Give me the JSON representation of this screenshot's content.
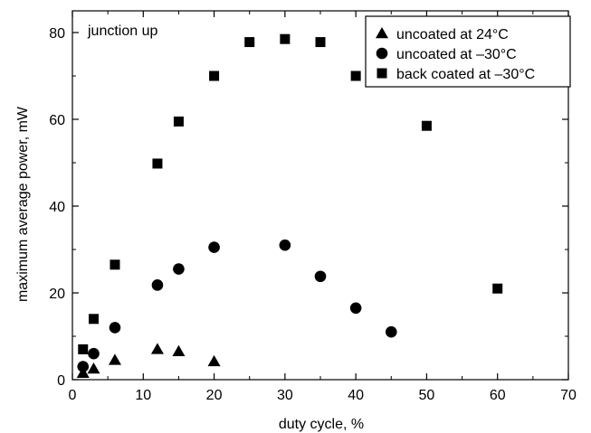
{
  "chart_data": {
    "type": "scatter",
    "title": "",
    "xlabel": "duty cycle, %",
    "ylabel": "maximum average power, mW",
    "annotation": "junction up",
    "xlim": [
      0,
      70
    ],
    "ylim": [
      0,
      85
    ],
    "xticks": [
      0,
      10,
      20,
      30,
      40,
      50,
      60,
      70
    ],
    "yticks": [
      0,
      20,
      40,
      60,
      80
    ],
    "grid": false,
    "legend_position": "top-right",
    "series": [
      {
        "name": "uncoated at 24°C",
        "marker": "triangle",
        "color": "#000000",
        "x": [
          1.5,
          3,
          6,
          12,
          15,
          20
        ],
        "y": [
          1.5,
          2.5,
          4.5,
          7,
          6.5,
          4.2
        ]
      },
      {
        "name": "uncoated at –30°C",
        "marker": "circle",
        "color": "#000000",
        "x": [
          1.5,
          3,
          6,
          12,
          15,
          20,
          30,
          35,
          40,
          45
        ],
        "y": [
          3,
          6,
          12,
          21.8,
          25.5,
          30.5,
          31,
          23.8,
          16.5,
          11
        ]
      },
      {
        "name": "back coated at –30°C",
        "marker": "square",
        "color": "#000000",
        "x": [
          1.5,
          3,
          6,
          12,
          15,
          20,
          25,
          30,
          35,
          40,
          50,
          60
        ],
        "y": [
          7,
          14,
          26.5,
          49.8,
          59.5,
          70,
          77.8,
          78.5,
          77.8,
          70,
          58.5,
          21
        ]
      }
    ]
  }
}
